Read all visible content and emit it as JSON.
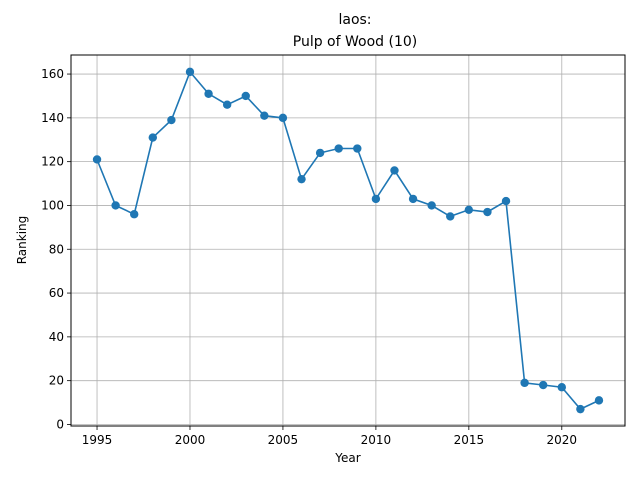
{
  "chart_data": {
    "type": "line",
    "title_line1": "laos:",
    "title_line2": "Pulp of Wood (10)",
    "xlabel": "Year",
    "ylabel": "Ranking",
    "xlim": [
      1993.6,
      2023.4
    ],
    "ylim": [
      -0.7,
      168.7
    ],
    "xticks": [
      1995,
      2000,
      2005,
      2010,
      2015,
      2020
    ],
    "yticks": [
      0,
      20,
      40,
      60,
      80,
      100,
      120,
      140,
      160
    ],
    "grid": true,
    "line_color": "#1f77b4",
    "series": [
      {
        "x": [
          1995,
          1996,
          1997,
          1998,
          1999,
          2000,
          2001,
          2002,
          2003,
          2004,
          2005,
          2006,
          2007,
          2008,
          2009,
          2010,
          2011,
          2012,
          2013,
          2014,
          2015,
          2016,
          2017,
          2018,
          2019,
          2020,
          2021,
          2022
        ],
        "values": [
          121,
          100,
          96,
          131,
          139,
          161,
          151,
          146,
          150,
          141,
          140,
          112,
          124,
          126,
          126,
          103,
          116,
          103,
          100,
          95,
          98,
          97,
          102,
          19,
          18,
          17,
          7,
          11
        ]
      }
    ]
  }
}
